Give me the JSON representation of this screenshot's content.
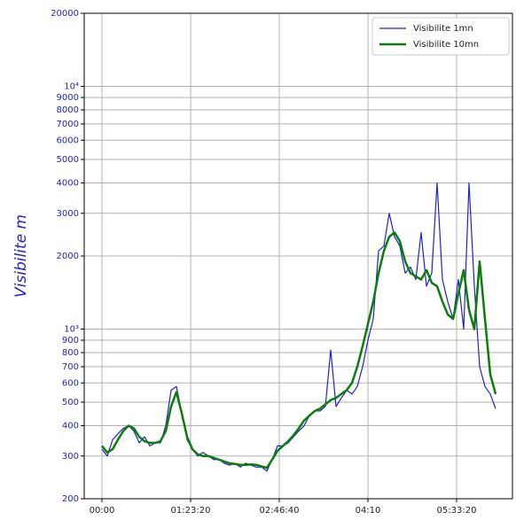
{
  "chart_data": {
    "type": "line",
    "ylabel": "Visibilite  m",
    "log_y": true,
    "grid": true,
    "legend": "upper right",
    "xlim": [
      -1000,
      23150
    ],
    "ylim": [
      200,
      20000
    ],
    "xticks": [
      {
        "value": 0,
        "label": "00:00"
      },
      {
        "value": 5000,
        "label": "01:23:20"
      },
      {
        "value": 10000,
        "label": "02:46:40"
      },
      {
        "value": 15000,
        "label": "04:10"
      },
      {
        "value": 20000,
        "label": "05:33:20"
      }
    ],
    "yticks": [
      200,
      300,
      400,
      500,
      600,
      700,
      800,
      900,
      {
        "value": 1000,
        "label": "10³"
      },
      2000,
      3000,
      4000,
      5000,
      6000,
      7000,
      8000,
      9000,
      {
        "value": 10000,
        "label": "10⁴"
      },
      20000
    ],
    "x": [
      0,
      300,
      600,
      900,
      1200,
      1500,
      1800,
      2100,
      2400,
      2700,
      3000,
      3300,
      3600,
      3900,
      4200,
      4500,
      4800,
      5100,
      5400,
      5700,
      6000,
      6300,
      6600,
      6900,
      7200,
      7500,
      7800,
      8100,
      8400,
      8700,
      9000,
      9300,
      9600,
      9900,
      10200,
      10500,
      10800,
      11100,
      11400,
      11700,
      12000,
      12300,
      12600,
      12900,
      13200,
      13500,
      13800,
      14100,
      14400,
      14700,
      15000,
      15300,
      15600,
      15900,
      16200,
      16500,
      16800,
      17100,
      17400,
      17700,
      18000,
      18300,
      18600,
      18900,
      19200,
      19500,
      19800,
      20100,
      20400,
      20700,
      21000,
      21300,
      21600,
      21900,
      22200
    ],
    "series": [
      {
        "name": "Visibilite 1mn",
        "color": "#2020d0",
        "width": 1.2,
        "values": [
          320,
          300,
          350,
          370,
          390,
          400,
          380,
          340,
          360,
          330,
          340,
          340,
          400,
          560,
          580,
          450,
          350,
          320,
          300,
          310,
          300,
          290,
          290,
          280,
          275,
          280,
          270,
          280,
          275,
          270,
          270,
          260,
          290,
          330,
          330,
          340,
          360,
          380,
          400,
          440,
          460,
          460,
          480,
          820,
          480,
          520,
          560,
          540,
          580,
          700,
          900,
          1100,
          2100,
          2200,
          3000,
          2400,
          2200,
          1700,
          1800,
          1600,
          2500,
          1500,
          1700,
          4000,
          1600,
          1300,
          1100,
          1600,
          1000,
          4000,
          1500,
          700,
          580,
          540,
          470
        ]
      },
      {
        "name": "Visibilite 10mn",
        "color": "#0a7d0a",
        "width": 2.5,
        "values": [
          330,
          310,
          320,
          350,
          380,
          400,
          390,
          360,
          345,
          340,
          340,
          345,
          380,
          480,
          550,
          450,
          360,
          320,
          305,
          300,
          300,
          295,
          290,
          285,
          280,
          278,
          276,
          276,
          277,
          276,
          272,
          268,
          290,
          315,
          330,
          345,
          365,
          390,
          420,
          440,
          460,
          470,
          490,
          510,
          520,
          540,
          560,
          600,
          700,
          850,
          1050,
          1300,
          1700,
          2100,
          2400,
          2500,
          2300,
          1900,
          1700,
          1650,
          1600,
          1750,
          1550,
          1500,
          1300,
          1150,
          1100,
          1400,
          1750,
          1200,
          1000,
          1900,
          1100,
          650,
          540
        ]
      }
    ]
  }
}
